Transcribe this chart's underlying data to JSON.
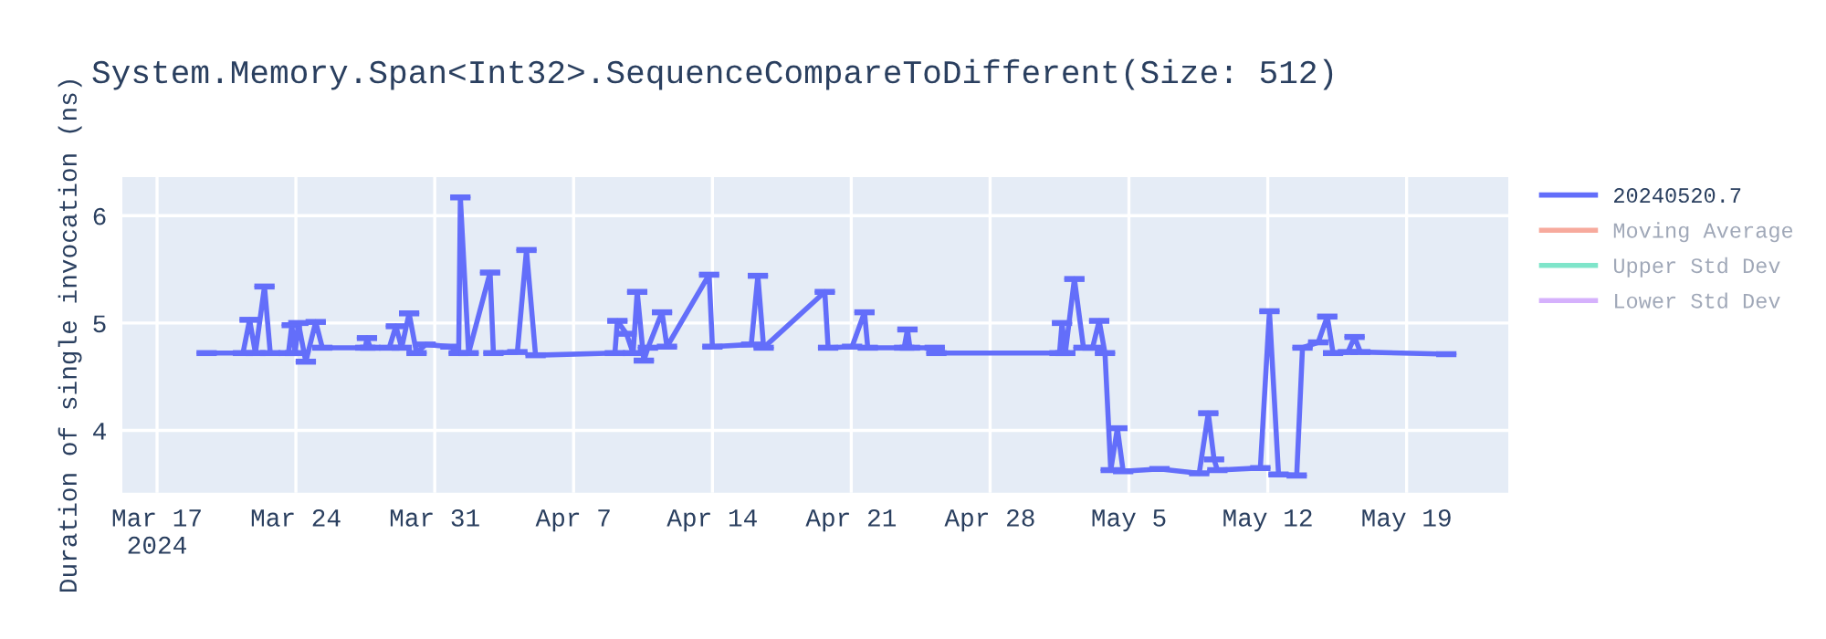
{
  "chart_data": {
    "type": "line",
    "title": "System.Memory.Span<Int32>.SequenceCompareToDifferent(Size: 512)",
    "ylabel": "Duration of single invocation (ns)",
    "x": [
      "2024-03-19T12:00",
      "2024-03-21T08:00",
      "2024-03-21T16:00",
      "2024-03-21T23:00",
      "2024-03-22T10:00",
      "2024-03-22T17:00",
      "2024-03-23T15:00",
      "2024-03-23T19:00",
      "2024-03-23T23:00",
      "2024-03-24T03:00",
      "2024-03-24T12:00",
      "2024-03-25T00:00",
      "2024-03-25T08:00",
      "2024-03-27T12:00",
      "2024-03-27T14:00",
      "2024-03-27T18:00",
      "2024-03-28T17:00",
      "2024-03-29T01:00",
      "2024-03-29T08:00",
      "2024-03-29T17:00",
      "2024-03-30T02:00",
      "2024-03-30T13:00",
      "2024-03-31T19:00",
      "2024-04-01T05:00",
      "2024-04-01T07:00",
      "2024-04-01T17:00",
      "2024-04-02T19:00",
      "2024-04-02T23:00",
      "2024-04-04T04:00",
      "2024-04-04T15:00",
      "2024-04-05T02:00",
      "2024-04-09T02:00",
      "2024-04-09T05:00",
      "2024-04-09T16:00",
      "2024-04-10T00:00",
      "2024-04-10T05:00",
      "2024-04-10T13:00",
      "2024-04-10T18:00",
      "2024-04-11T11:00",
      "2024-04-11T17:00",
      "2024-04-13T20:00",
      "2024-04-14T00:00",
      "2024-04-15T23:00",
      "2024-04-16T07:00",
      "2024-04-16T14:00",
      "2024-04-19T16:00",
      "2024-04-19T20:00",
      "2024-04-21T01:00",
      "2024-04-21T16:00",
      "2024-04-21T20:00",
      "2024-04-23T16:00",
      "2024-04-23T20:00",
      "2024-04-23T23:00",
      "2024-04-25T05:00",
      "2024-04-25T07:00",
      "2024-05-01T12:00",
      "2024-05-01T15:00",
      "2024-05-01T19:00",
      "2024-05-02T06:00",
      "2024-05-02T17:00",
      "2024-05-03T04:00",
      "2024-05-03T12:00",
      "2024-05-03T19:00",
      "2024-05-04T02:00",
      "2024-05-04T10:00",
      "2024-05-04T17:00",
      "2024-05-06T13:00",
      "2024-05-08T13:00",
      "2024-05-09T00:00",
      "2024-05-09T07:00",
      "2024-05-09T11:00",
      "2024-05-11T15:00",
      "2024-05-12T02:00",
      "2024-05-12T13:00",
      "2024-05-13T11:00",
      "2024-05-13T18:00",
      "2024-05-14T13:00",
      "2024-05-15T00:00",
      "2024-05-15T07:00",
      "2024-05-16T01:00",
      "2024-05-16T09:00",
      "2024-05-16T16:00",
      "2024-05-21T00:00"
    ],
    "series": [
      {
        "name": "20240520.7",
        "color": "#636efa",
        "values": [
          4.72,
          4.72,
          5.03,
          4.72,
          5.34,
          4.72,
          4.72,
          4.98,
          4.72,
          5.0,
          4.64,
          5.01,
          4.77,
          4.77,
          4.86,
          4.77,
          4.77,
          4.97,
          4.77,
          5.09,
          4.72,
          4.8,
          4.78,
          4.72,
          6.17,
          4.72,
          5.47,
          4.72,
          4.73,
          5.68,
          4.7,
          4.72,
          5.02,
          4.9,
          4.72,
          5.29,
          4.65,
          4.77,
          5.1,
          4.78,
          5.45,
          4.78,
          4.8,
          5.44,
          4.77,
          5.29,
          4.77,
          4.78,
          5.1,
          4.77,
          4.77,
          4.94,
          4.77,
          4.77,
          4.72,
          4.72,
          5.0,
          4.72,
          5.41,
          4.77,
          4.77,
          5.02,
          4.72,
          3.63,
          4.02,
          3.62,
          3.64,
          3.6,
          4.16,
          3.73,
          3.63,
          3.65,
          5.11,
          3.59,
          3.58,
          4.77,
          4.82,
          5.06,
          4.72,
          4.73,
          4.87,
          4.73,
          4.71
        ],
        "errors": [
          0.01,
          0.01,
          0.01,
          0.01,
          0.01,
          0.01,
          0.01,
          0.01,
          0.01,
          0.01,
          0.01,
          0.01,
          0.01,
          0.01,
          0.01,
          0.01,
          0.01,
          0.01,
          0.01,
          0.01,
          0.01,
          0.01,
          0.01,
          0.01,
          0.01,
          0.01,
          0.01,
          0.01,
          0.01,
          0.01,
          0.01,
          0.01,
          0.01,
          0.01,
          0.01,
          0.01,
          0.01,
          0.01,
          0.01,
          0.01,
          0.01,
          0.01,
          0.01,
          0.01,
          0.01,
          0.01,
          0.01,
          0.01,
          0.01,
          0.01,
          0.01,
          0.01,
          0.01,
          0.01,
          0.01,
          0.01,
          0.01,
          0.01,
          0.01,
          0.01,
          0.01,
          0.01,
          0.01,
          0.01,
          0.01,
          0.01,
          0.01,
          0.01,
          0.01,
          0.01,
          0.01,
          0.01,
          0.01,
          0.01,
          0.01,
          0.01,
          0.01,
          0.01,
          0.01,
          0.01,
          0.01,
          0.01,
          0.01
        ]
      },
      {
        "name": "Moving Average",
        "color": "#ef553b",
        "values": [
          null,
          null,
          null,
          null,
          null,
          null,
          null,
          null,
          null,
          null,
          null,
          null,
          null,
          null,
          null,
          null,
          null,
          null,
          null,
          null,
          null,
          null,
          null,
          null,
          null,
          null,
          null,
          null,
          null,
          null,
          null,
          null,
          null,
          null,
          null,
          null,
          null,
          null,
          null,
          null,
          null,
          null,
          null,
          null,
          null,
          null,
          null,
          null,
          null,
          null,
          null,
          null,
          null,
          null,
          null,
          null,
          null,
          null,
          null,
          null,
          null,
          null,
          null,
          null,
          null,
          null,
          null,
          null,
          null,
          null,
          null,
          null,
          null,
          null,
          null,
          null,
          null,
          null,
          null,
          null,
          null,
          null,
          null
        ]
      },
      {
        "name": "Upper Std Dev",
        "color": "#00cc96",
        "values": [
          null,
          null,
          null,
          null,
          null,
          null,
          null,
          null,
          null,
          null,
          null,
          null,
          null,
          null,
          null,
          null,
          null,
          null,
          null,
          null,
          null,
          null,
          null,
          null,
          null,
          null,
          null,
          null,
          null,
          null,
          null,
          null,
          null,
          null,
          null,
          null,
          null,
          null,
          null,
          null,
          null,
          null,
          null,
          null,
          null,
          null,
          null,
          null,
          null,
          null,
          null,
          null,
          null,
          null,
          null,
          null,
          null,
          null,
          null,
          null,
          null,
          null,
          null,
          null,
          null,
          null,
          null,
          null,
          null,
          null,
          null,
          null,
          null,
          null,
          null,
          null,
          null,
          null,
          null,
          null,
          null,
          null,
          null
        ]
      },
      {
        "name": "Lower Std Dev",
        "color": "#ab63fa",
        "values": [
          null,
          null,
          null,
          null,
          null,
          null,
          null,
          null,
          null,
          null,
          null,
          null,
          null,
          null,
          null,
          null,
          null,
          null,
          null,
          null,
          null,
          null,
          null,
          null,
          null,
          null,
          null,
          null,
          null,
          null,
          null,
          null,
          null,
          null,
          null,
          null,
          null,
          null,
          null,
          null,
          null,
          null,
          null,
          null,
          null,
          null,
          null,
          null,
          null,
          null,
          null,
          null,
          null,
          null,
          null,
          null,
          null,
          null,
          null,
          null,
          null,
          null,
          null,
          null,
          null,
          null,
          null,
          null,
          null,
          null,
          null,
          null,
          null,
          null,
          null,
          null,
          null,
          null,
          null,
          null,
          null,
          null,
          null
        ]
      }
    ],
    "xlim": [
      "2024-03-15T06:00",
      "2024-05-24T03:00"
    ],
    "xticks": [
      {
        "value": "2024-03-17",
        "label": "Mar 17\n2024"
      },
      {
        "value": "2024-03-24",
        "label": "Mar 24"
      },
      {
        "value": "2024-03-31",
        "label": "Mar 31"
      },
      {
        "value": "2024-04-07",
        "label": "Apr 7"
      },
      {
        "value": "2024-04-14",
        "label": "Apr 14"
      },
      {
        "value": "2024-04-21",
        "label": "Apr 21"
      },
      {
        "value": "2024-04-28",
        "label": "Apr 28"
      },
      {
        "value": "2024-05-05",
        "label": "May 5"
      },
      {
        "value": "2024-05-12",
        "label": "May 12"
      },
      {
        "value": "2024-05-19",
        "label": "May 19"
      }
    ],
    "ylim": [
      3.42,
      6.36
    ],
    "yticks": [
      4,
      5,
      6
    ],
    "grid": true,
    "legend": "top right",
    "marker": "none",
    "line_style": "solid"
  }
}
